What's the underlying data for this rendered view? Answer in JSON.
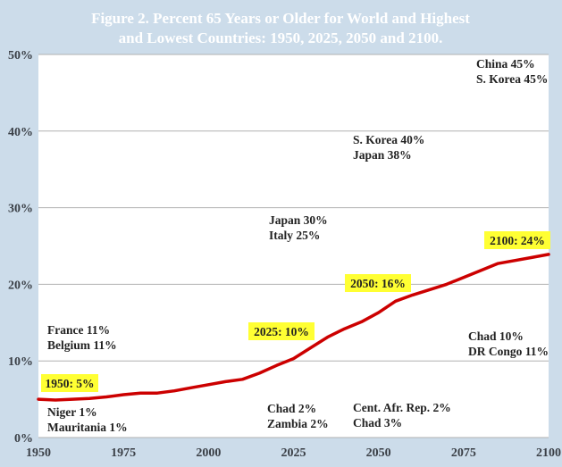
{
  "chart_data": {
    "type": "line",
    "title": [
      "Figure 2. Percent 65 Years or Older for World and Highest",
      "and Lowest Countries: 1950, 2025, 2050 and 2100."
    ],
    "xlabel": "",
    "ylabel": "",
    "xlim": [
      1950,
      2100
    ],
    "ylim": [
      0,
      50
    ],
    "x_ticks": [
      1950,
      1975,
      2000,
      2025,
      2050,
      2075,
      2100
    ],
    "y_ticks": [
      0,
      10,
      20,
      30,
      40,
      50
    ],
    "y_tick_labels": [
      "0%",
      "10%",
      "20%",
      "30%",
      "40%",
      "50%"
    ],
    "grid": "horizontal",
    "colors": {
      "line": "#cc0000",
      "highlight": "#ffff33",
      "background": "#ccdcea",
      "plot": "#ffffff"
    },
    "series": [
      {
        "x": [
          1950,
          1955,
          1960,
          1965,
          1970,
          1975,
          1980,
          1985,
          1990,
          1995,
          2000,
          2005,
          2010,
          2015,
          2020,
          2025,
          2030,
          2035,
          2040,
          2045,
          2050,
          2055,
          2060,
          2065,
          2070,
          2075,
          2080,
          2085,
          2090,
          2095,
          2100
        ],
        "values": [
          5.0,
          4.9,
          5.0,
          5.1,
          5.3,
          5.6,
          5.8,
          5.8,
          6.1,
          6.5,
          6.9,
          7.3,
          7.6,
          8.4,
          9.4,
          10.3,
          11.7,
          13.1,
          14.2,
          15.1,
          16.3,
          17.8,
          18.6,
          19.3,
          20.0,
          20.9,
          21.8,
          22.7,
          23.1,
          23.5,
          23.9
        ]
      }
    ],
    "highlights": [
      {
        "label": "1950: 5%",
        "x": 1950,
        "y": 5
      },
      {
        "label": "2025: 10%",
        "x": 2025,
        "y": 10
      },
      {
        "label": "2050: 16%",
        "x": 2050,
        "y": 16
      },
      {
        "label": "2100: 24%",
        "x": 2100,
        "y": 24
      }
    ],
    "annotations": [
      {
        "lines": [
          "France 11%",
          "Belgium 11%"
        ]
      },
      {
        "lines": [
          "Niger 1%",
          "Mauritania 1%"
        ]
      },
      {
        "lines": [
          "Japan 30%",
          "Italy 25%"
        ]
      },
      {
        "lines": [
          "Chad 2%",
          "Zambia 2%"
        ]
      },
      {
        "lines": [
          "S. Korea 40%",
          "Japan 38%"
        ]
      },
      {
        "lines": [
          "Cent. Afr. Rep. 2%",
          "Chad 3%"
        ]
      },
      {
        "lines": [
          "China 45%",
          "S. Korea 45%"
        ]
      },
      {
        "lines": [
          "Chad 10%",
          "DR Congo 11%"
        ]
      }
    ]
  }
}
